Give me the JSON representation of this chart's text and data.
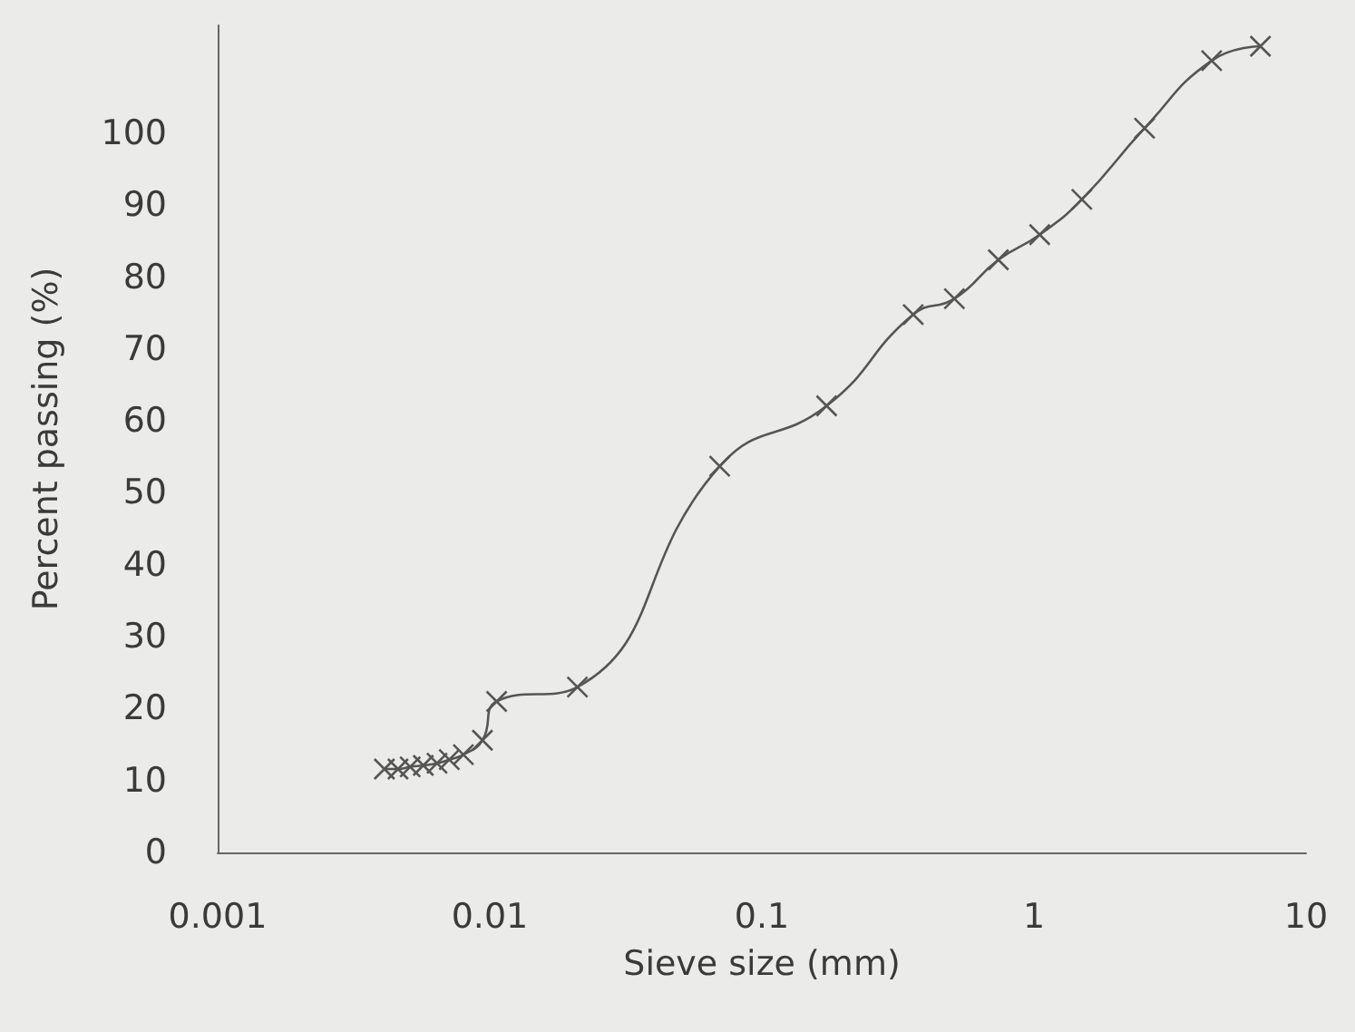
{
  "chart_data": {
    "type": "line",
    "xlabel": "Sieve size (mm)",
    "ylabel": "Percent passing (%)",
    "log": "x",
    "grid": false,
    "marker": "cross",
    "line_style": "solid",
    "xlim": [
      0.001,
      10
    ],
    "xticks": [
      0.001,
      0.01,
      0.1,
      1,
      10
    ],
    "ylim": [
      0,
      115
    ],
    "yticks": [
      0,
      10,
      20,
      30,
      40,
      50,
      60,
      70,
      80,
      90,
      100
    ],
    "series": [
      {
        "color": "#555555",
        "x": [
          0.0041,
          0.0046,
          0.0051,
          0.0057,
          0.0064,
          0.0071,
          0.008,
          0.0094,
          0.0106,
          0.021,
          0.07,
          0.173,
          0.36,
          0.51,
          0.74,
          1.05,
          1.5,
          2.55,
          4.5,
          6.8
        ],
        "values": [
          11.6,
          11.6,
          11.9,
          12.1,
          12.4,
          12.9,
          13.6,
          15.6,
          21,
          23,
          53.7,
          62.1,
          74.8,
          77,
          82.4,
          85.9,
          90.8,
          100.7,
          110.1,
          112.1
        ]
      }
    ]
  }
}
